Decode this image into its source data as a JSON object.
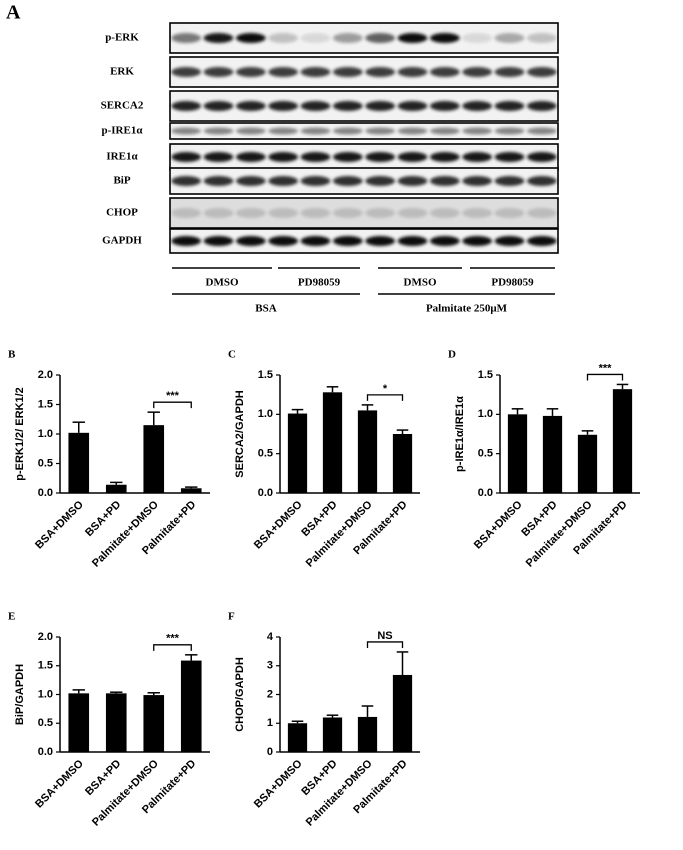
{
  "blot": {
    "panel_label": "A",
    "rows": [
      "p-ERK",
      "ERK",
      "SERCA2",
      "p-IRE1α",
      "IRE1α",
      "BiP",
      "CHOP",
      "GAPDH"
    ],
    "groups": [
      "DMSO",
      "PD98059",
      "DMSO",
      "PD98059"
    ],
    "treatments": [
      "BSA",
      "Palmitate 250μM"
    ]
  },
  "chart_data": [
    {
      "type": "bar",
      "panel_label": "B",
      "y_label": "p-ERK1/2/ ERK1/2",
      "categories": [
        "BSA+DMSO",
        "BSA+PD",
        "Palmitate+DMSO",
        "Palmitate+PD"
      ],
      "values": [
        1.02,
        0.14,
        1.15,
        0.08
      ],
      "errors": [
        0.18,
        0.04,
        0.22,
        0.02
      ],
      "color": "#000000",
      "ylim": [
        0,
        2
      ],
      "yticks": [
        {
          "value": 0,
          "label": "0.0"
        },
        0.5,
        {
          "value": 1,
          "label": "1.0"
        },
        1.5,
        {
          "value": 2,
          "label": "2.0"
        }
      ],
      "annotation": {
        "label": "***",
        "between": [
          "Palmitate+DMSO",
          "Palmitate+PD"
        ]
      }
    },
    {
      "type": "bar",
      "panel_label": "C",
      "y_label": "SERCA2/GAPDH",
      "categories": [
        "BSA+DMSO",
        "BSA+PD",
        "Palmitate+DMSO",
        "Palmitate+PD"
      ],
      "values": [
        1.01,
        1.28,
        1.05,
        0.75
      ],
      "errors": [
        0.05,
        0.07,
        0.07,
        0.05
      ],
      "color": "#000000",
      "ylim": [
        0,
        1.5
      ],
      "yticks": [
        {
          "value": 0,
          "label": "0.0"
        },
        0.5,
        {
          "value": 1,
          "label": "1.0"
        },
        1.5
      ],
      "annotation": {
        "label": "*",
        "between": [
          "Palmitate+DMSO",
          "Palmitate+PD"
        ]
      }
    },
    {
      "type": "bar",
      "panel_label": "D",
      "y_label": "p-IRE1α/IRE1α",
      "categories": [
        "BSA+DMSO",
        "BSA+PD",
        "Palmitate+DMSO",
        "Palmitate+PD"
      ],
      "values": [
        1.0,
        0.98,
        0.74,
        1.32
      ],
      "errors": [
        0.07,
        0.09,
        0.05,
        0.06
      ],
      "color": "#000000",
      "ylim": [
        0,
        1.5
      ],
      "yticks": [
        {
          "value": 0,
          "label": "0.0"
        },
        0.5,
        {
          "value": 1,
          "label": "1.0"
        },
        1.5
      ],
      "annotation": {
        "label": "***",
        "between": [
          "Palmitate+DMSO",
          "Palmitate+PD"
        ]
      }
    },
    {
      "type": "bar",
      "panel_label": "E",
      "y_label": "BiP/GAPDH",
      "categories": [
        "BSA+DMSO",
        "BSA+PD",
        "Palmitate+DMSO",
        "Palmitate+PD"
      ],
      "values": [
        1.02,
        1.02,
        0.99,
        1.59
      ],
      "errors": [
        0.06,
        0.02,
        0.04,
        0.1
      ],
      "color": "#000000",
      "ylim": [
        0,
        2
      ],
      "yticks": [
        {
          "value": 0,
          "label": "0.0"
        },
        0.5,
        {
          "value": 1,
          "label": "1.0"
        },
        1.5,
        {
          "value": 2,
          "label": "2.0"
        }
      ],
      "annotation": {
        "label": "***",
        "between": [
          "Palmitate+DMSO",
          "Palmitate+PD"
        ]
      }
    },
    {
      "type": "bar",
      "panel_label": "F",
      "y_label": "CHOP/GAPDH",
      "categories": [
        "BSA+DMSO",
        "BSA+PD",
        "Palmitate+DMSO",
        "Palmitate+PD"
      ],
      "values": [
        1.0,
        1.2,
        1.22,
        2.68
      ],
      "errors": [
        0.07,
        0.08,
        0.38,
        0.8
      ],
      "color": "#000000",
      "ylim": [
        0,
        4
      ],
      "yticks": [
        0,
        1,
        2,
        3,
        4
      ],
      "annotation": {
        "label": "NS",
        "between": [
          "Palmitate+DMSO",
          "Palmitate+PD"
        ]
      }
    }
  ]
}
